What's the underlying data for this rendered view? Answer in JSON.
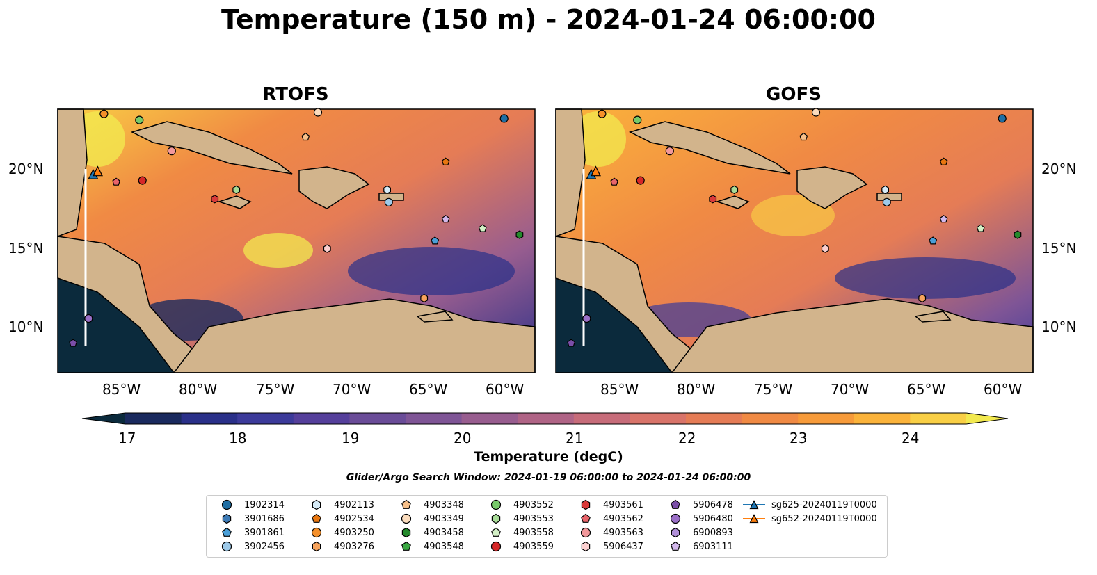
{
  "title": "Temperature (150 m) - 2024-01-24 06:00:00",
  "panels": [
    {
      "title": "RTOFS"
    },
    {
      "title": "GOFS"
    }
  ],
  "axes": {
    "x_ticks": [
      "85°W",
      "80°W",
      "75°W",
      "70°W",
      "65°W",
      "60°W"
    ],
    "y_ticks": [
      "20°N",
      "15°N",
      "10°N"
    ]
  },
  "colorbar": {
    "label": "Temperature (degC)",
    "ticks": [
      "17",
      "18",
      "19",
      "20",
      "21",
      "22",
      "23",
      "24"
    ],
    "colors": [
      "#0b2a3c",
      "#1a2a5e",
      "#2a3089",
      "#3c3a9a",
      "#553f9b",
      "#6a4c98",
      "#7f5596",
      "#985d8f",
      "#b06486",
      "#c76c7a",
      "#d9746a",
      "#e57c56",
      "#f08a44",
      "#f79b3a",
      "#fbb33b",
      "#f9cf45",
      "#f2e94f"
    ]
  },
  "search_window": "Glider/Argo Search Window: 2024-01-19 06:00:00 to 2024-01-24 06:00:00",
  "legend": [
    {
      "label": "1902314",
      "marker": "circle",
      "color": "#1f6ea3"
    },
    {
      "label": "3901686",
      "marker": "hexagon",
      "color": "#3d7ab5"
    },
    {
      "label": "3901861",
      "marker": "pentagon",
      "color": "#4a9fd8"
    },
    {
      "label": "3902456",
      "marker": "circle",
      "color": "#9ecae9"
    },
    {
      "label": "4902113",
      "marker": "hexagon",
      "color": "#d6ebf7"
    },
    {
      "label": "4902534",
      "marker": "pentagon",
      "color": "#e8760f"
    },
    {
      "label": "4903250",
      "marker": "circle",
      "color": "#f5902a"
    },
    {
      "label": "4903276",
      "marker": "hexagon",
      "color": "#f7a35c"
    },
    {
      "label": "4903348",
      "marker": "pentagon",
      "color": "#f7c08a"
    },
    {
      "label": "4903349",
      "marker": "circle",
      "color": "#fbdcbd"
    },
    {
      "label": "4903458",
      "marker": "hexagon",
      "color": "#248a2c"
    },
    {
      "label": "4903548",
      "marker": "pentagon",
      "color": "#3aa842"
    },
    {
      "label": "4903552",
      "marker": "circle",
      "color": "#77c96a"
    },
    {
      "label": "4903553",
      "marker": "hexagon",
      "color": "#a8dc98"
    },
    {
      "label": "4903558",
      "marker": "pentagon",
      "color": "#d3f0c6"
    },
    {
      "label": "4903559",
      "marker": "circle",
      "color": "#d62728"
    },
    {
      "label": "4903561",
      "marker": "hexagon",
      "color": "#d93a3a"
    },
    {
      "label": "4903562",
      "marker": "pentagon",
      "color": "#e8646a"
    },
    {
      "label": "4903563",
      "marker": "circle",
      "color": "#f2989b"
    },
    {
      "label": "5906437",
      "marker": "hexagon",
      "color": "#fbd0d0"
    },
    {
      "label": "5906478",
      "marker": "pentagon",
      "color": "#7b4ea8"
    },
    {
      "label": "5906480",
      "marker": "circle",
      "color": "#9a6fc7"
    },
    {
      "label": "6900893",
      "marker": "hexagon",
      "color": "#b08fd8"
    },
    {
      "label": "6903111",
      "marker": "pentagon",
      "color": "#d3b8ec"
    },
    {
      "label": "sg625-20240119T0000",
      "marker": "line-triangle",
      "color": "#1f77b4"
    },
    {
      "label": "sg652-20240119T0000",
      "marker": "line-triangle",
      "color": "#ff7f0e"
    }
  ],
  "map_data": {
    "lon_range": [
      -89,
      -58
    ],
    "lat_range": [
      7,
      24
    ],
    "floats": [
      {
        "id": "1902314",
        "lon": -60.0,
        "lat": 23.4
      },
      {
        "id": "4903250",
        "lon": -86.0,
        "lat": 23.7
      },
      {
        "id": "4903552",
        "lon": -83.7,
        "lat": 23.3
      },
      {
        "id": "4903349",
        "lon": -72.1,
        "lat": 23.8
      },
      {
        "id": "4903348",
        "lon": -72.9,
        "lat": 22.2
      },
      {
        "id": "4903563",
        "lon": -81.6,
        "lat": 21.3
      },
      {
        "id": "4902534",
        "lon": -63.8,
        "lat": 20.6
      },
      {
        "id": "4903562",
        "lon": -85.2,
        "lat": 19.3
      },
      {
        "id": "4903559",
        "lon": -83.5,
        "lat": 19.4
      },
      {
        "id": "4903553",
        "lon": -77.4,
        "lat": 18.8
      },
      {
        "id": "4903561",
        "lon": -78.8,
        "lat": 18.2
      },
      {
        "id": "4902113",
        "lon": -67.6,
        "lat": 18.8
      },
      {
        "id": "3902456",
        "lon": -67.5,
        "lat": 18.0
      },
      {
        "id": "6903111",
        "lon": -63.8,
        "lat": 16.9
      },
      {
        "id": "4903558",
        "lon": -61.4,
        "lat": 16.3
      },
      {
        "id": "4903458",
        "lon": -59.0,
        "lat": 15.9
      },
      {
        "id": "3901861",
        "lon": -64.5,
        "lat": 15.5
      },
      {
        "id": "5906437",
        "lon": -71.5,
        "lat": 15.0
      },
      {
        "id": "4903276",
        "lon": -65.2,
        "lat": 11.8
      },
      {
        "id": "5906480",
        "lon": -87.0,
        "lat": 10.5
      },
      {
        "id": "5906478",
        "lon": -88.0,
        "lat": 8.9
      }
    ],
    "gliders": [
      {
        "id": "sg625-20240119T0000",
        "lon": -86.7,
        "lat": 19.8
      },
      {
        "id": "sg652-20240119T0000",
        "lon": -86.4,
        "lat": 20.0
      }
    ]
  }
}
